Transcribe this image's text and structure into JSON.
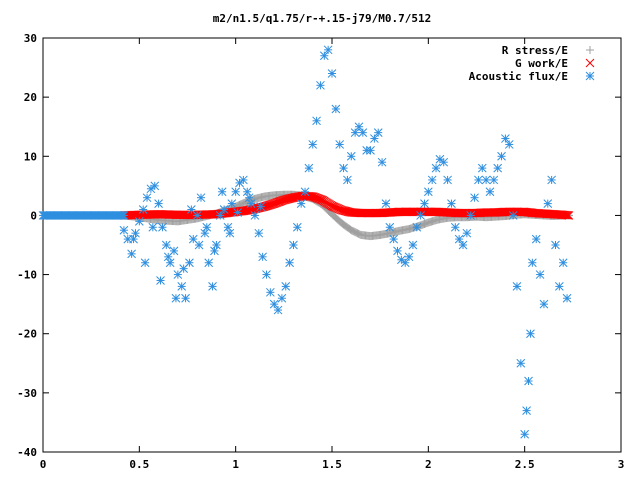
{
  "chart_data": {
    "type": "scatter",
    "title": "m2/n1.5/q1.75/r-+.15-j79/M0.7/512",
    "xlabel": "",
    "ylabel": "",
    "xlim": [
      0,
      3
    ],
    "ylim": [
      -40,
      30
    ],
    "xticks": [
      0,
      0.5,
      1,
      1.5,
      2,
      2.5,
      3
    ],
    "xtick_labels": [
      "0",
      "0.5",
      "1",
      "1.5",
      "2",
      "2.5",
      "3"
    ],
    "yticks": [
      -40,
      -30,
      -20,
      -10,
      0,
      10,
      20,
      30
    ],
    "ytick_labels": [
      "-40",
      "-30",
      "-20",
      "-10",
      "0",
      "10",
      "20",
      "30"
    ],
    "grid": false,
    "legend_position": "top-right",
    "series": [
      {
        "name": "R stress/E",
        "marker": "plus",
        "color": "#a0a0a0",
        "x": [
          0.42,
          0.5,
          0.6,
          0.7,
          0.8,
          0.9,
          1.0,
          1.05,
          1.1,
          1.15,
          1.2,
          1.25,
          1.3,
          1.35,
          1.4,
          1.45,
          1.5,
          1.55,
          1.6,
          1.65,
          1.7,
          1.75,
          1.8,
          1.85,
          1.9,
          1.95,
          2.0,
          2.05,
          2.1,
          2.15,
          2.2,
          2.25,
          2.3,
          2.35,
          2.4,
          2.45,
          2.5,
          2.55,
          2.6,
          2.65,
          2.7,
          2.73
        ],
        "y": [
          0,
          -0.3,
          -0.8,
          -1.0,
          -0.5,
          0.3,
          1.5,
          2.2,
          2.8,
          3.2,
          3.4,
          3.5,
          3.5,
          3.3,
          2.8,
          1.8,
          0.2,
          -1.3,
          -2.5,
          -3.3,
          -3.5,
          -3.3,
          -3.0,
          -2.6,
          -2.3,
          -1.8,
          -1.2,
          -0.7,
          -0.4,
          -0.3,
          -0.3,
          -0.2,
          -0.3,
          -0.2,
          -0.1,
          0.1,
          0.2,
          0.1,
          0,
          -0.1,
          0,
          0
        ]
      },
      {
        "name": "G work/E",
        "marker": "cross",
        "color": "#ff0000",
        "x": [
          0.42,
          0.5,
          0.6,
          0.7,
          0.8,
          0.9,
          1.0,
          1.05,
          1.1,
          1.15,
          1.2,
          1.25,
          1.3,
          1.35,
          1.4,
          1.45,
          1.5,
          1.55,
          1.6,
          1.65,
          1.7,
          1.75,
          1.8,
          1.85,
          1.9,
          1.95,
          2.0,
          2.05,
          2.1,
          2.15,
          2.2,
          2.25,
          2.3,
          2.35,
          2.4,
          2.45,
          2.5,
          2.55,
          2.6,
          2.65,
          2.7,
          2.73
        ],
        "y": [
          0,
          0.1,
          0.2,
          0.1,
          0.1,
          0.2,
          0.6,
          0.8,
          1.1,
          1.5,
          2.0,
          2.6,
          3.0,
          3.3,
          3.2,
          2.6,
          1.6,
          0.9,
          0.5,
          0.4,
          0.4,
          0.4,
          0.5,
          0.6,
          0.6,
          0.6,
          0.6,
          0.6,
          0.5,
          0.4,
          0.4,
          0.4,
          0.5,
          0.5,
          0.6,
          0.6,
          0.6,
          0.4,
          0.3,
          0.2,
          0.1,
          0
        ]
      },
      {
        "name": "Acoustic flux/E",
        "marker": "star",
        "color": "#2f8fdf",
        "x": [
          0.42,
          0.44,
          0.46,
          0.48,
          0.5,
          0.52,
          0.54,
          0.56,
          0.58,
          0.6,
          0.62,
          0.64,
          0.66,
          0.68,
          0.7,
          0.72,
          0.74,
          0.76,
          0.78,
          0.8,
          0.82,
          0.84,
          0.86,
          0.88,
          0.9,
          0.92,
          0.94,
          0.96,
          0.98,
          1.0,
          1.02,
          1.04,
          1.06,
          1.08,
          1.1,
          1.12,
          1.14,
          1.16,
          1.18,
          1.2,
          1.22,
          1.24,
          1.26,
          1.28,
          1.3,
          1.32,
          1.34,
          1.36,
          1.38,
          1.4,
          1.42,
          1.44,
          1.46,
          1.48,
          1.5,
          1.52,
          1.54,
          1.56,
          1.58,
          1.6,
          1.62,
          1.64,
          1.66,
          1.68,
          1.7,
          1.72,
          1.74,
          1.76,
          1.78,
          1.8,
          1.82,
          1.84,
          1.86,
          1.88,
          1.9,
          1.92,
          1.94,
          1.96,
          1.98,
          2.0,
          2.02,
          2.04,
          2.06,
          2.08,
          2.1,
          2.12,
          2.14,
          2.16,
          2.18,
          2.2,
          2.22,
          2.24,
          2.26,
          2.28,
          2.3,
          2.32,
          2.34,
          2.36,
          2.38,
          2.4,
          2.42,
          2.44,
          2.46,
          2.48,
          2.5,
          2.51,
          2.52,
          2.53,
          2.54,
          2.56,
          2.58,
          2.6,
          2.62,
          2.64,
          2.66,
          2.68,
          2.7,
          2.72,
          0.47,
          0.53,
          0.57,
          0.61,
          0.65,
          0.69,
          0.73,
          0.77,
          0.81,
          0.85,
          0.89,
          0.93,
          0.97,
          1.01,
          1.07,
          1.13
        ],
        "y": [
          -2.5,
          -4,
          -6.5,
          -3,
          -1,
          1,
          3,
          4.5,
          5,
          2,
          -2,
          -5,
          -8,
          -6,
          -10,
          -12,
          -14,
          -8,
          -4,
          0,
          3,
          -3,
          -8,
          -12,
          -5,
          0,
          1,
          -2,
          2,
          4,
          5.5,
          6,
          4,
          2,
          0,
          -3,
          -7,
          -10,
          -13,
          -15,
          -16,
          -14,
          -12,
          -8,
          -5,
          -2,
          2,
          4,
          8,
          12,
          16,
          22,
          27,
          28,
          24,
          18,
          12,
          8,
          6,
          10,
          14,
          15,
          14,
          11,
          11,
          13,
          14,
          9,
          2,
          -2,
          -4,
          -6,
          -7.5,
          -8,
          -7,
          -5,
          -2,
          0,
          2,
          4,
          6,
          8,
          9.5,
          9,
          6,
          2,
          -2,
          -4,
          -5,
          -3,
          0,
          3,
          6,
          8,
          6,
          4,
          6,
          8,
          10,
          13,
          12,
          0,
          -12,
          -25,
          -37,
          -33,
          -28,
          -20,
          -8,
          -4,
          -10,
          -15,
          2,
          6,
          -5,
          -12,
          -8,
          -14,
          -4,
          -8,
          -2,
          -11,
          -7,
          -14,
          -9,
          1,
          -5,
          -2,
          -6,
          4,
          -3,
          0.5,
          3,
          1.5
        ],
        "prefix_flat": {
          "x_start": 0,
          "x_end": 0.42,
          "y": 0
        }
      }
    ]
  }
}
